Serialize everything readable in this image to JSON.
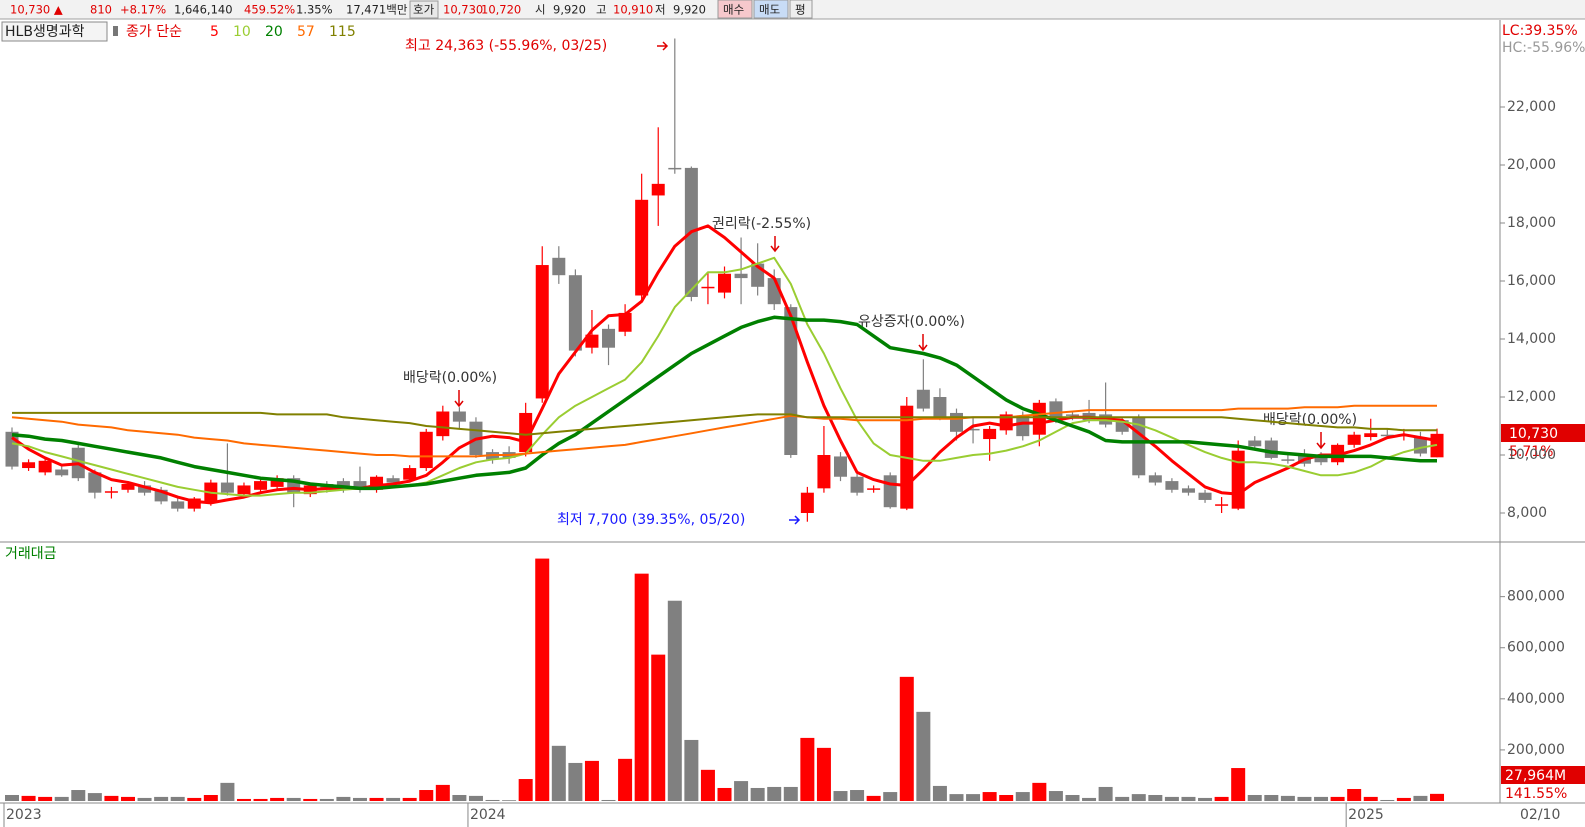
{
  "toolbar": {
    "price": "10,730 ▲",
    "change": "810",
    "change_pct": "+8.17%",
    "volume": "1,646,140",
    "volume_ratio": "459.52%",
    "turnover": "1.35%",
    "amount": "17,471백만",
    "ask_label": "호가",
    "ask": "10,730",
    "bid": "10,720",
    "open_label": "시",
    "open": "9,920",
    "high_label": "고",
    "high": "10,910",
    "low_label": "저",
    "low": "9,920",
    "buttons": [
      "매수",
      "매도",
      "평"
    ]
  },
  "chart_data": [
    {
      "type": "candlestick",
      "title": "HLB생명과학",
      "legend_prefix": "종가 단순",
      "up_color": "#ff0000",
      "down_color": "#808080",
      "categories": [
        "2023",
        null,
        null,
        null,
        null,
        null,
        null,
        null,
        null,
        null,
        null,
        null,
        null,
        null,
        null,
        null,
        null,
        null,
        null,
        null,
        null,
        null,
        null,
        null,
        null,
        null,
        null,
        null,
        "2024",
        null,
        null,
        null,
        null,
        null,
        null,
        null,
        null,
        null,
        null,
        null,
        null,
        null,
        null,
        null,
        null,
        null,
        null,
        null,
        null,
        null,
        null,
        null,
        null,
        null,
        null,
        null,
        null,
        null,
        null,
        null,
        null,
        null,
        null,
        null,
        null,
        null,
        null,
        null,
        null,
        null,
        null,
        null,
        null,
        null,
        null,
        null,
        null,
        null,
        null,
        null,
        null,
        "2025",
        null,
        null,
        null,
        null,
        null
      ],
      "open": [
        10800,
        9550,
        9400,
        9500,
        10250,
        9400,
        8700,
        8800,
        8950,
        8800,
        8400,
        8150,
        8350,
        9050,
        8650,
        8800,
        8900,
        9200,
        8650,
        9000,
        9100,
        9100,
        8800,
        9200,
        9150,
        9550,
        10650,
        11500,
        11150,
        10100,
        10100,
        10100,
        11950,
        16800,
        16200,
        13700,
        14350,
        14250,
        15500,
        18950,
        19900,
        19900,
        15750,
        15600,
        16250,
        16600,
        16100,
        15100,
        8000,
        8850,
        9950,
        9250,
        8800,
        9300,
        8150,
        12250,
        12000,
        11450,
        10900,
        10550,
        10850,
        11350,
        10700,
        11850,
        11400,
        11450,
        11400,
        11200,
        11300,
        9300,
        9100,
        8850,
        8700,
        8250,
        8150,
        10500,
        10500,
        9850,
        10000,
        10000,
        9750,
        10350,
        10620,
        10700,
        10650,
        10600,
        9920
      ],
      "high": [
        10950,
        9850,
        9900,
        9600,
        10400,
        9500,
        8900,
        9100,
        9100,
        8900,
        8500,
        8550,
        9150,
        10400,
        9050,
        9200,
        9300,
        9300,
        9050,
        9100,
        9200,
        9600,
        9300,
        9300,
        9650,
        10900,
        11700,
        11650,
        11300,
        10200,
        10300,
        11800,
        17200,
        17200,
        16400,
        15000,
        14500,
        15200,
        19700,
        21300,
        24363,
        19950,
        16300,
        16500,
        17500,
        17300,
        16400,
        15200,
        8900,
        11000,
        10100,
        9350,
        8950,
        9400,
        12000,
        13300,
        12300,
        11600,
        11300,
        11000,
        11500,
        11500,
        11900,
        11950,
        11500,
        11900,
        12500,
        11300,
        11400,
        9400,
        9200,
        8950,
        8800,
        8550,
        10500,
        10650,
        10600,
        10100,
        10200,
        10100,
        10400,
        10800,
        11250,
        10900,
        10900,
        10800,
        10910
      ],
      "low": [
        9500,
        9450,
        9300,
        9250,
        9100,
        8500,
        8500,
        8700,
        8600,
        8300,
        8050,
        8050,
        8250,
        8600,
        8550,
        8700,
        8800,
        8200,
        8550,
        8700,
        8700,
        8700,
        8700,
        8950,
        9050,
        9450,
        10500,
        10900,
        9900,
        9700,
        9700,
        9950,
        11800,
        15900,
        13400,
        13500,
        13100,
        14100,
        15300,
        17900,
        19700,
        15300,
        15200,
        15400,
        15200,
        15500,
        15000,
        9900,
        7700,
        8700,
        9100,
        8600,
        8700,
        8150,
        8100,
        11500,
        11200,
        10500,
        10400,
        9800,
        10700,
        10500,
        10300,
        11100,
        11200,
        11100,
        10950,
        10700,
        9200,
        8950,
        8700,
        8600,
        8350,
        8000,
        8100,
        10200,
        9850,
        9700,
        9600,
        9650,
        9650,
        10250,
        10500,
        10550,
        10500,
        9950,
        9920
      ],
      "close": [
        9600,
        9750,
        9800,
        9300,
        9200,
        8700,
        8750,
        9000,
        8700,
        8400,
        8150,
        8500,
        9050,
        8700,
        8950,
        9100,
        9200,
        8700,
        8950,
        8800,
        8800,
        8800,
        9250,
        9050,
        9550,
        10800,
        11500,
        11150,
        10000,
        9850,
        9900,
        11450,
        16550,
        16200,
        13600,
        14150,
        13700,
        14900,
        18800,
        19350,
        19850,
        15450,
        15800,
        16250,
        16100,
        15800,
        15200,
        10000,
        8700,
        10000,
        9250,
        8700,
        8850,
        8200,
        11700,
        11600,
        11300,
        10800,
        10850,
        10900,
        11400,
        10650,
        11800,
        11300,
        11350,
        11200,
        11050,
        10800,
        9300,
        9050,
        8800,
        8700,
        8450,
        8300,
        10150,
        10300,
        9900,
        9800,
        9700,
        9750,
        10350,
        10700,
        10750,
        10650,
        10700,
        10050,
        10730
      ],
      "series": [
        {
          "name": "5",
          "color": "#ff0000",
          "values": [
            10600,
            10200,
            9900,
            9650,
            9700,
            9400,
            9150,
            9050,
            8900,
            8750,
            8550,
            8400,
            8350,
            8450,
            8550,
            8700,
            8800,
            8850,
            8800,
            8850,
            8850,
            8850,
            8950,
            9000,
            9100,
            9300,
            9750,
            10250,
            10550,
            10650,
            10600,
            10450,
            11600,
            12800,
            13550,
            14300,
            14800,
            14850,
            15300,
            16300,
            17200,
            17700,
            17900,
            17500,
            17000,
            16500,
            16100,
            14800,
            13200,
            11700,
            10500,
            9400,
            9150,
            9000,
            8950,
            9500,
            10100,
            10600,
            11000,
            11100,
            11000,
            11100,
            11100,
            11200,
            11300,
            11300,
            11250,
            11200,
            10750,
            10300,
            9800,
            9350,
            8900,
            8700,
            8650,
            9050,
            9300,
            9550,
            9850,
            10000,
            10000,
            10150,
            10350,
            10600,
            10700,
            10600,
            10500
          ]
        },
        {
          "name": "10",
          "color": "#9acd32",
          "values": [
            10400,
            10300,
            10100,
            9950,
            9800,
            9650,
            9500,
            9350,
            9200,
            9050,
            8900,
            8800,
            8700,
            8650,
            8600,
            8600,
            8650,
            8700,
            8700,
            8750,
            8800,
            8850,
            8850,
            8900,
            8950,
            9050,
            9300,
            9550,
            9750,
            9850,
            9900,
            10050,
            10700,
            11300,
            11700,
            12000,
            12300,
            12600,
            13200,
            14100,
            15100,
            15700,
            16300,
            16300,
            16400,
            16600,
            16800,
            15900,
            14500,
            13500,
            12300,
            11200,
            10400,
            10000,
            9900,
            9800,
            9800,
            9900,
            10000,
            10050,
            10150,
            10300,
            10500,
            10800,
            11100,
            11200,
            11200,
            11150,
            11050,
            10850,
            10600,
            10350,
            10100,
            9900,
            9750,
            9750,
            9700,
            9600,
            9450,
            9300,
            9300,
            9400,
            9600,
            9900,
            10100,
            10250,
            10350
          ]
        },
        {
          "name": "20",
          "color": "#008000",
          "values": [
            10700,
            10650,
            10550,
            10500,
            10400,
            10300,
            10200,
            10100,
            10000,
            9900,
            9750,
            9600,
            9500,
            9400,
            9300,
            9200,
            9150,
            9100,
            9000,
            8950,
            8900,
            8850,
            8850,
            8900,
            8950,
            9000,
            9100,
            9200,
            9300,
            9350,
            9400,
            9550,
            10000,
            10400,
            10700,
            11100,
            11500,
            11900,
            12300,
            12700,
            13100,
            13500,
            13800,
            14100,
            14400,
            14600,
            14750,
            14700,
            14650,
            14650,
            14600,
            14500,
            14100,
            13700,
            13600,
            13500,
            13350,
            13100,
            12700,
            12300,
            11900,
            11600,
            11400,
            11200,
            11000,
            10800,
            10500,
            10450,
            10450,
            10450,
            10450,
            10450,
            10400,
            10350,
            10300,
            10200,
            10100,
            10050,
            10000,
            9950,
            9950,
            9950,
            9950,
            9900,
            9850,
            9800,
            9800
          ]
        },
        {
          "name": "57",
          "color": "#ff6a00",
          "values": [
            11300,
            11250,
            11200,
            11150,
            11050,
            11000,
            10950,
            10850,
            10800,
            10750,
            10700,
            10600,
            10550,
            10500,
            10400,
            10350,
            10300,
            10250,
            10200,
            10150,
            10100,
            10050,
            10000,
            10000,
            9950,
            9950,
            9950,
            9950,
            9950,
            10000,
            10000,
            10050,
            10100,
            10150,
            10200,
            10250,
            10300,
            10350,
            10450,
            10550,
            10650,
            10750,
            10850,
            10950,
            11050,
            11150,
            11250,
            11350,
            11300,
            11250,
            11250,
            11200,
            11200,
            11200,
            11200,
            11250,
            11250,
            11250,
            11300,
            11300,
            11300,
            11350,
            11400,
            11450,
            11500,
            11550,
            11550,
            11550,
            11550,
            11550,
            11550,
            11550,
            11550,
            11550,
            11600,
            11600,
            11600,
            11600,
            11650,
            11650,
            11650,
            11700,
            11700,
            11700,
            11700,
            11700,
            11700
          ]
        },
        {
          "name": "115",
          "color": "#808000",
          "values": [
            11450,
            11450,
            11450,
            11450,
            11450,
            11450,
            11450,
            11450,
            11450,
            11450,
            11450,
            11450,
            11450,
            11450,
            11450,
            11450,
            11400,
            11400,
            11400,
            11400,
            11300,
            11250,
            11200,
            11150,
            11100,
            11000,
            10950,
            10900,
            10850,
            10800,
            10750,
            10700,
            10750,
            10800,
            10850,
            10900,
            10950,
            11000,
            11050,
            11100,
            11150,
            11200,
            11250,
            11300,
            11350,
            11400,
            11400,
            11400,
            11300,
            11300,
            11300,
            11300,
            11300,
            11300,
            11300,
            11300,
            11300,
            11300,
            11300,
            11300,
            11300,
            11300,
            11300,
            11300,
            11300,
            11300,
            11300,
            11300,
            11300,
            11300,
            11300,
            11300,
            11300,
            11300,
            11250,
            11200,
            11150,
            11100,
            11050,
            11000,
            10950,
            10950,
            10900,
            10900,
            10850,
            10850,
            10850
          ]
        }
      ],
      "ylim": [
        7000,
        25000
      ],
      "yticks": [
        {
          "value": 8000,
          "label": "8,000"
        },
        {
          "value": 10000,
          "label": "10,000"
        },
        {
          "value": 12000,
          "label": "12,000"
        },
        {
          "value": 14000,
          "label": "14,000"
        },
        {
          "value": 16000,
          "label": "16,000"
        },
        {
          "value": 18000,
          "label": "18,000"
        },
        {
          "value": 20000,
          "label": "20,000"
        },
        {
          "value": 22000,
          "label": "22,000"
        }
      ],
      "annotations": [
        "최고 24,363 (-55.96%, 03/25)",
        "권리락(-2.55%)",
        "배당락(0.00%)",
        "유상증자(0.00%)",
        "최저 7,700 (39.35%, 05/20)",
        "배당락(0.00%)"
      ],
      "lc_label": "LC:39.35%",
      "hc_label": "HC:-55.96%",
      "last_price": "10,730",
      "last_change": "5.71%",
      "last_date": "02/10"
    },
    {
      "type": "bar",
      "title": "거래대금",
      "values": [
        23500,
        20000,
        16000,
        16000,
        43000,
        31000,
        20000,
        16000,
        12000,
        16000,
        16000,
        12000,
        23500,
        71000,
        8000,
        8000,
        12000,
        12000,
        8000,
        8000,
        16000,
        12000,
        12000,
        12000,
        12000,
        43000,
        63000,
        23500,
        20000,
        4000,
        3000,
        86000,
        949000,
        216000,
        149000,
        157000,
        4000,
        165000,
        890000,
        573000,
        784000,
        239000,
        122000,
        51000,
        78000,
        51000,
        55000,
        55000,
        247000,
        208000,
        39000,
        43000,
        20000,
        35000,
        486000,
        349000,
        59000,
        27000,
        27000,
        35000,
        23500,
        35000,
        71000,
        39000,
        23500,
        12000,
        55000,
        16000,
        27000,
        23500,
        16000,
        16000,
        12000,
        16000,
        129000,
        23500,
        23500,
        20000,
        16000,
        16000,
        16000,
        47000,
        16000,
        4000,
        12000,
        20000,
        27964
      ],
      "ylim": [
        0,
        1010000
      ],
      "yticks": [
        {
          "value": 200000,
          "label": "200,000"
        },
        {
          "value": 400000,
          "label": "400,000"
        },
        {
          "value": 600000,
          "label": "600,000"
        },
        {
          "value": 800000,
          "label": "800,000"
        }
      ],
      "last_value": "27,964M",
      "last_ratio": "141.55%"
    }
  ]
}
